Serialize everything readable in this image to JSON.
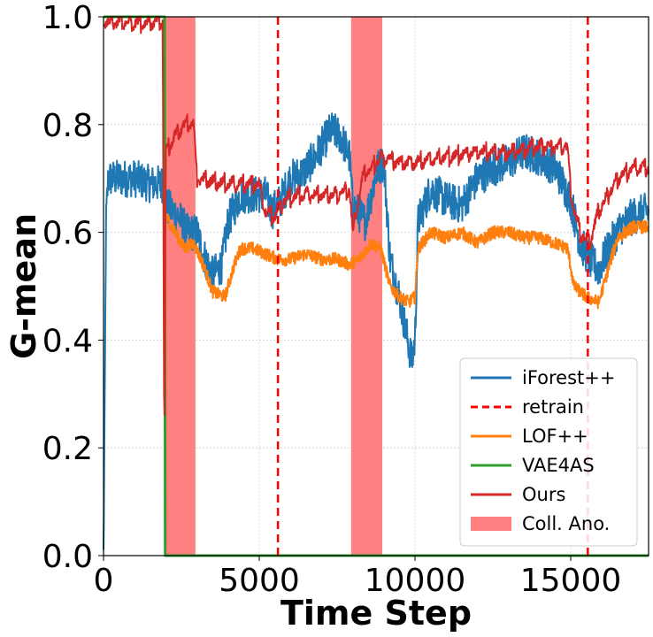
{
  "chart_data": {
    "type": "line",
    "title": "",
    "xlabel": "Time Step",
    "ylabel": "G-mean",
    "xlim": [
      0,
      17500
    ],
    "ylim": [
      0,
      1.0
    ],
    "xticks": [
      0,
      5000,
      10000,
      15000
    ],
    "xtick_labels": [
      "0",
      "5000",
      "10000",
      "15000"
    ],
    "yticks": [
      0.0,
      0.2,
      0.4,
      0.6,
      0.8,
      1.0
    ],
    "ytick_labels": [
      "0.0",
      "0.2",
      "0.4",
      "0.6",
      "0.8",
      "1.0"
    ],
    "grid": true,
    "legend_position": "lower-right",
    "collective_anomalies": [
      [
        1950,
        2950
      ],
      [
        7950,
        8950
      ]
    ],
    "retrain_lines": [
      5600,
      15550
    ],
    "series": [
      {
        "name": "iForest++",
        "color": "#1f77b4",
        "style": "solid",
        "noise": 0.035,
        "points": [
          [
            0,
            0.0
          ],
          [
            40,
            0.28
          ],
          [
            80,
            0.62
          ],
          [
            150,
            0.7
          ],
          [
            500,
            0.7
          ],
          [
            1000,
            0.7
          ],
          [
            1500,
            0.69
          ],
          [
            1900,
            0.69
          ],
          [
            2000,
            0.65
          ],
          [
            2200,
            0.64
          ],
          [
            2400,
            0.63
          ],
          [
            2700,
            0.6
          ],
          [
            3000,
            0.6
          ],
          [
            3200,
            0.56
          ],
          [
            3500,
            0.52
          ],
          [
            3800,
            0.54
          ],
          [
            4000,
            0.62
          ],
          [
            4400,
            0.67
          ],
          [
            5000,
            0.67
          ],
          [
            5200,
            0.67
          ],
          [
            5400,
            0.64
          ],
          [
            5600,
            0.65
          ],
          [
            6000,
            0.7
          ],
          [
            6400,
            0.71
          ],
          [
            6800,
            0.74
          ],
          [
            7000,
            0.76
          ],
          [
            7300,
            0.79
          ],
          [
            7600,
            0.78
          ],
          [
            7900,
            0.74
          ],
          [
            8000,
            0.65
          ],
          [
            8400,
            0.62
          ],
          [
            8800,
            0.72
          ],
          [
            9000,
            0.73
          ],
          [
            9200,
            0.55
          ],
          [
            9500,
            0.48
          ],
          [
            9700,
            0.42
          ],
          [
            9900,
            0.36
          ],
          [
            10000,
            0.4
          ],
          [
            10100,
            0.62
          ],
          [
            10500,
            0.68
          ],
          [
            11000,
            0.66
          ],
          [
            11500,
            0.65
          ],
          [
            12000,
            0.7
          ],
          [
            12500,
            0.72
          ],
          [
            13000,
            0.73
          ],
          [
            13500,
            0.75
          ],
          [
            14000,
            0.74
          ],
          [
            14500,
            0.72
          ],
          [
            15000,
            0.66
          ],
          [
            15300,
            0.58
          ],
          [
            15600,
            0.55
          ],
          [
            15900,
            0.53
          ],
          [
            16200,
            0.57
          ],
          [
            16600,
            0.61
          ],
          [
            17000,
            0.63
          ],
          [
            17500,
            0.64
          ]
        ]
      },
      {
        "name": "retrain",
        "color": "#ff0000",
        "style": "dashed"
      },
      {
        "name": "LOF++",
        "color": "#ff7f0e",
        "style": "solid",
        "noise": 0.012,
        "points": [
          [
            2000,
            0.63
          ],
          [
            2300,
            0.6
          ],
          [
            2600,
            0.57
          ],
          [
            2900,
            0.58
          ],
          [
            3200,
            0.54
          ],
          [
            3500,
            0.49
          ],
          [
            3900,
            0.48
          ],
          [
            4200,
            0.54
          ],
          [
            4400,
            0.57
          ],
          [
            4800,
            0.57
          ],
          [
            5200,
            0.56
          ],
          [
            5600,
            0.55
          ],
          [
            6000,
            0.55
          ],
          [
            6500,
            0.56
          ],
          [
            7000,
            0.55
          ],
          [
            7500,
            0.55
          ],
          [
            7900,
            0.54
          ],
          [
            8200,
            0.55
          ],
          [
            8600,
            0.58
          ],
          [
            8900,
            0.57
          ],
          [
            9200,
            0.5
          ],
          [
            9500,
            0.48
          ],
          [
            9800,
            0.47
          ],
          [
            10000,
            0.48
          ],
          [
            10100,
            0.57
          ],
          [
            10500,
            0.6
          ],
          [
            11000,
            0.59
          ],
          [
            11500,
            0.6
          ],
          [
            12000,
            0.58
          ],
          [
            12500,
            0.6
          ],
          [
            13000,
            0.6
          ],
          [
            13500,
            0.59
          ],
          [
            14000,
            0.59
          ],
          [
            14500,
            0.58
          ],
          [
            14900,
            0.57
          ],
          [
            15100,
            0.5
          ],
          [
            15500,
            0.48
          ],
          [
            15900,
            0.47
          ],
          [
            16200,
            0.53
          ],
          [
            16500,
            0.59
          ],
          [
            17000,
            0.61
          ],
          [
            17500,
            0.61
          ]
        ]
      },
      {
        "name": "VAE4AS",
        "color": "#2ca02c",
        "style": "solid",
        "noise": 0,
        "points": [
          [
            0,
            1.0
          ],
          [
            1900,
            1.0
          ],
          [
            1960,
            1.0
          ],
          [
            1980,
            0.0
          ],
          [
            17500,
            0.0
          ]
        ]
      },
      {
        "name": "Ours",
        "color": "#d62728",
        "style": "solid",
        "noise": 0.008,
        "points": [
          [
            0,
            0.99
          ],
          [
            1900,
            0.99
          ],
          [
            1950,
            0.2
          ],
          [
            2000,
            0.75
          ],
          [
            2300,
            0.78
          ],
          [
            2600,
            0.8
          ],
          [
            2900,
            0.8
          ],
          [
            3000,
            0.7
          ],
          [
            4000,
            0.69
          ],
          [
            5000,
            0.69
          ],
          [
            5200,
            0.64
          ],
          [
            5500,
            0.63
          ],
          [
            5800,
            0.66
          ],
          [
            6300,
            0.67
          ],
          [
            7000,
            0.67
          ],
          [
            7500,
            0.67
          ],
          [
            7900,
            0.68
          ],
          [
            8000,
            0.6
          ],
          [
            8300,
            0.7
          ],
          [
            8600,
            0.72
          ],
          [
            8900,
            0.74
          ],
          [
            9500,
            0.73
          ],
          [
            10000,
            0.73
          ],
          [
            11000,
            0.74
          ],
          [
            12000,
            0.75
          ],
          [
            13000,
            0.75
          ],
          [
            14000,
            0.76
          ],
          [
            14900,
            0.76
          ],
          [
            15000,
            0.67
          ],
          [
            15300,
            0.6
          ],
          [
            15600,
            0.58
          ],
          [
            15900,
            0.64
          ],
          [
            16500,
            0.7
          ],
          [
            17000,
            0.72
          ],
          [
            17500,
            0.72
          ]
        ]
      },
      {
        "name": "Coll. Ano.",
        "color": "#ff8080",
        "style": "patch"
      }
    ]
  }
}
